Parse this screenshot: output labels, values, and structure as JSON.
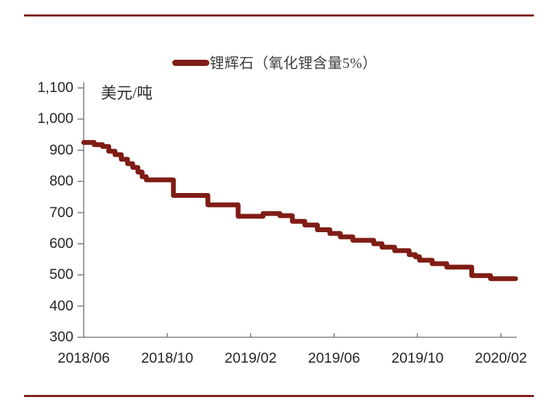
{
  "page": {
    "background": "#ffffff",
    "accent_rule_color": "#7f1d15"
  },
  "legend": {
    "label": "锂辉石（氧化锂含量5%）",
    "swatch_color": "#7f1d15"
  },
  "chart_data": {
    "type": "line",
    "style": "step-after",
    "title": "",
    "unit_label": "美元/吨",
    "series_name": "锂辉石（氧化锂含量5%）",
    "line_color": "#7f1d15",
    "axis_color": "#7f7f7f",
    "label_color": "#262626",
    "ylim": [
      300,
      1100
    ],
    "y_tick_step": 100,
    "y_ticks": [
      {
        "label": "300",
        "value": 300
      },
      {
        "label": "400",
        "value": 400
      },
      {
        "label": "500",
        "value": 500
      },
      {
        "label": "600",
        "value": 600
      },
      {
        "label": "700",
        "value": 700
      },
      {
        "label": "800",
        "value": 800
      },
      {
        "label": "900",
        "value": 900
      },
      {
        "label": "1,000",
        "value": 1000
      },
      {
        "label": "1,100",
        "value": 1100
      }
    ],
    "x_unit": "months_since_2018_06",
    "xlim": [
      0,
      20.7
    ],
    "x_ticks": [
      {
        "label": "2018/06",
        "m": 0
      },
      {
        "label": "2018/10",
        "m": 4
      },
      {
        "label": "2019/02",
        "m": 8
      },
      {
        "label": "2019/06",
        "m": 12
      },
      {
        "label": "2019/10",
        "m": 16
      },
      {
        "label": "2020/02",
        "m": 20
      }
    ],
    "points": [
      [
        0.0,
        925
      ],
      [
        0.5,
        918
      ],
      [
        0.9,
        912
      ],
      [
        1.2,
        897
      ],
      [
        1.5,
        886
      ],
      [
        1.8,
        871
      ],
      [
        2.1,
        857
      ],
      [
        2.35,
        845
      ],
      [
        2.6,
        830
      ],
      [
        2.8,
        815
      ],
      [
        3.0,
        805
      ],
      [
        4.3,
        755
      ],
      [
        5.95,
        725
      ],
      [
        7.4,
        688
      ],
      [
        8.6,
        697
      ],
      [
        9.4,
        690
      ],
      [
        10.0,
        672
      ],
      [
        10.6,
        660
      ],
      [
        11.2,
        645
      ],
      [
        11.8,
        633
      ],
      [
        12.3,
        622
      ],
      [
        12.9,
        611
      ],
      [
        13.9,
        600
      ],
      [
        14.3,
        589
      ],
      [
        14.9,
        578
      ],
      [
        15.6,
        565
      ],
      [
        15.9,
        558
      ],
      [
        16.1,
        547
      ],
      [
        16.7,
        536
      ],
      [
        17.4,
        525
      ],
      [
        18.6,
        498
      ],
      [
        19.5,
        488
      ],
      [
        20.7,
        488
      ]
    ]
  }
}
